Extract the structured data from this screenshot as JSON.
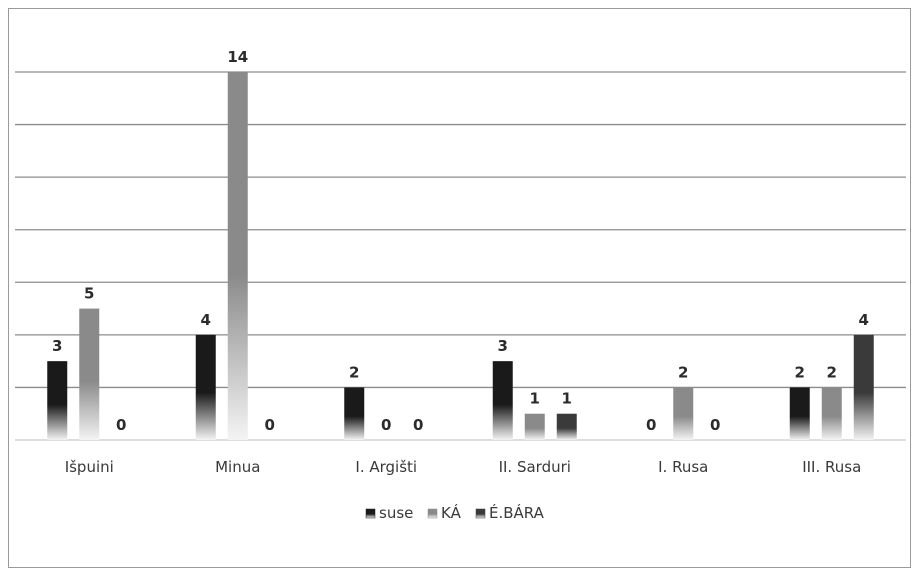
{
  "chart_data": {
    "type": "bar",
    "categories": [
      "Išpuini",
      "Minua",
      "I. Argišti",
      "II. Sarduri",
      "I. Rusa",
      "III. Rusa"
    ],
    "series": [
      {
        "name": "suse",
        "values": [
          3,
          4,
          2,
          3,
          0,
          2
        ],
        "color": "#1a1a1a"
      },
      {
        "name": "KÁ",
        "values": [
          5,
          14,
          0,
          1,
          2,
          2
        ],
        "color": "#8a8a8a"
      },
      {
        "name": "É.BÁRA",
        "values": [
          0,
          0,
          0,
          1,
          0,
          4
        ],
        "color": "#3a3a3a"
      }
    ],
    "ylim": [
      0,
      14
    ],
    "grid": true,
    "legend": "bottom",
    "data_labels": true
  }
}
